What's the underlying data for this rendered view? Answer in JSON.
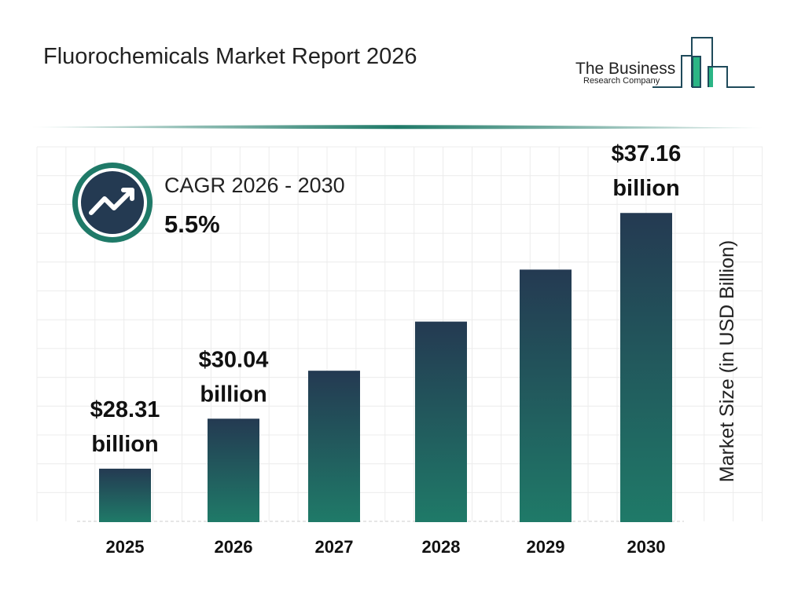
{
  "title": "Fluorochemicals Market Report 2026",
  "logo": {
    "line1": "The Business",
    "line2": "Research Company"
  },
  "cagr": {
    "label": "CAGR 2026 - 2030",
    "value": "5.5%",
    "icon": "trending-up-icon"
  },
  "colors": {
    "bar_top": "#243a52",
    "bar_bottom": "#1f7a68",
    "accent": "#1f7a68",
    "dark": "#243a52"
  },
  "chart_data": {
    "type": "bar",
    "title": "Fluorochemicals Market Report 2026",
    "categories": [
      "2025",
      "2026",
      "2027",
      "2028",
      "2029",
      "2030"
    ],
    "values": [
      28.31,
      30.04,
      31.7,
      33.4,
      35.2,
      37.16
    ],
    "data_labels": [
      {
        "index": 0,
        "line1": "$28.31",
        "line2": "billion"
      },
      {
        "index": 1,
        "line1": "$30.04",
        "line2": "billion"
      },
      {
        "index": 5,
        "line1": "$37.16",
        "line2": "billion"
      }
    ],
    "xlabel": "",
    "ylabel": "Market Size (in USD Billion)",
    "grid": true,
    "legend": "none"
  }
}
